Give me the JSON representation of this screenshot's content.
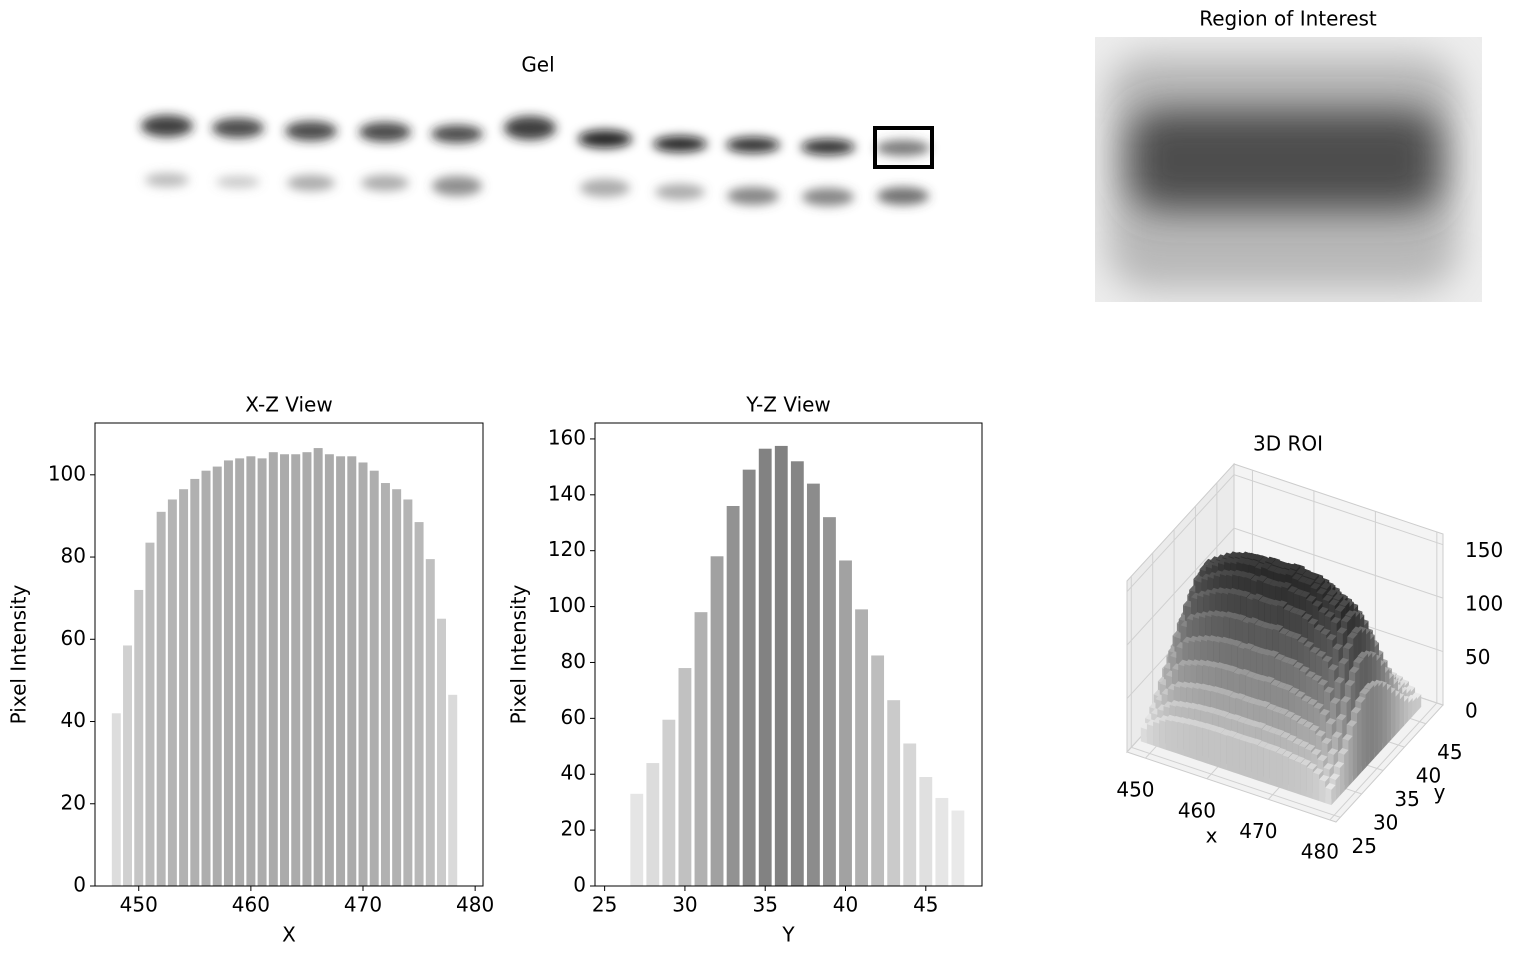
{
  "gel": {
    "title": "Gel"
  },
  "roi": {
    "title": "Region of Interest"
  },
  "chart_data": [
    {
      "type": "bar",
      "title": "X-Z View",
      "xlabel": "X",
      "ylabel": "Pixel Intensity",
      "x": [
        448,
        449,
        450,
        451,
        452,
        453,
        454,
        455,
        456,
        457,
        458,
        459,
        460,
        461,
        462,
        463,
        464,
        465,
        466,
        467,
        468,
        469,
        470,
        471,
        472,
        473,
        474,
        475,
        476,
        477,
        478
      ],
      "values": [
        42,
        58.5,
        72,
        83.5,
        91,
        94,
        96.5,
        99,
        101,
        102,
        103.5,
        104,
        104.5,
        104,
        105.5,
        105,
        105,
        105.5,
        106.5,
        105,
        104.5,
        104.5,
        103,
        101,
        98,
        96.5,
        94,
        88.5,
        79.5,
        65,
        46.5
      ],
      "xlim": [
        446.1,
        480.7
      ],
      "ylim": [
        0,
        112.6
      ],
      "xticks": [
        450,
        460,
        470,
        480
      ],
      "yticks": [
        0,
        20,
        40,
        60,
        80,
        100
      ]
    },
    {
      "type": "bar",
      "title": "Y-Z View",
      "xlabel": "Y",
      "ylabel": "Pixel Intensity",
      "x": [
        27,
        28,
        29,
        30,
        31,
        32,
        33,
        34,
        35,
        36,
        37,
        38,
        39,
        40,
        41,
        42,
        43,
        44,
        45,
        46,
        47
      ],
      "values": [
        33,
        44,
        59.5,
        78,
        98,
        118,
        136,
        149,
        156.5,
        157.5,
        152,
        144,
        132,
        116.5,
        99,
        82.5,
        66.5,
        51,
        39,
        31.5,
        27
      ],
      "xlim": [
        24.4,
        48.5
      ],
      "ylim": [
        0,
        165.7
      ],
      "xticks": [
        25,
        30,
        35,
        40,
        45
      ],
      "yticks": [
        0,
        20,
        40,
        60,
        80,
        100,
        120,
        140,
        160
      ]
    },
    {
      "type": "bar3d",
      "title": "3D ROI",
      "xlabel": "x",
      "ylabel": "y",
      "xlim": [
        447,
        481
      ],
      "ylim": [
        24,
        49
      ],
      "zlim": [
        0,
        160
      ],
      "xticks": [
        450,
        460,
        470,
        480
      ],
      "yticks": [
        25,
        30,
        35,
        40,
        45
      ],
      "zticks": [
        0,
        50,
        100,
        150
      ]
    }
  ]
}
